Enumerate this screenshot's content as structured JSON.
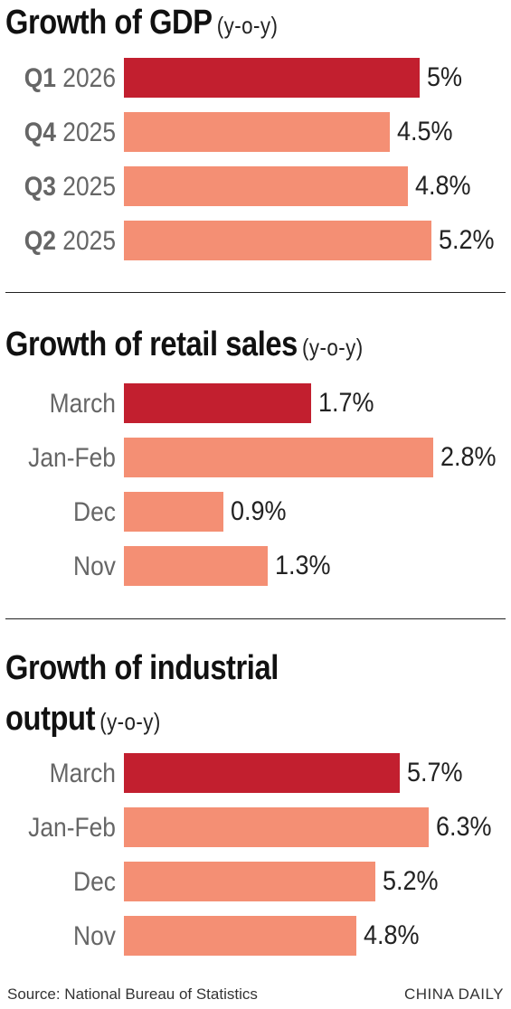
{
  "colors": {
    "highlight": "#c21f2f",
    "bar": "#f48f74"
  },
  "chart_data": [
    {
      "type": "bar",
      "orientation": "horizontal",
      "title": "Growth of GDP",
      "subtitle": "(y-o-y)",
      "categories": [
        {
          "bold": "Q1",
          "rest": " 2026"
        },
        {
          "bold": "Q4",
          "rest": " 2025"
        },
        {
          "bold": "Q3",
          "rest": " 2025"
        },
        {
          "bold": "Q2",
          "rest": " 2025"
        }
      ],
      "values": [
        5,
        4.5,
        4.8,
        5.2
      ],
      "labels": [
        "5%",
        "4.5%",
        "4.8%",
        "5.2%"
      ],
      "highlight_index": 0
    },
    {
      "type": "bar",
      "orientation": "horizontal",
      "title": "Growth of retail sales",
      "subtitle": "(y-o-y)",
      "categories": [
        {
          "bold": "",
          "rest": "March"
        },
        {
          "bold": "",
          "rest": "Jan-Feb"
        },
        {
          "bold": "",
          "rest": "Dec"
        },
        {
          "bold": "",
          "rest": "Nov"
        }
      ],
      "values": [
        1.7,
        2.8,
        0.9,
        1.3
      ],
      "labels": [
        "1.7%",
        "2.8%",
        "0.9%",
        "1.3%"
      ],
      "highlight_index": 0
    },
    {
      "type": "bar",
      "orientation": "horizontal",
      "title": "Growth of industrial output",
      "title_lines": [
        "Growth of industrial",
        "output"
      ],
      "subtitle": "(y-o-y)",
      "categories": [
        {
          "bold": "",
          "rest": "March"
        },
        {
          "bold": "",
          "rest": "Jan-Feb"
        },
        {
          "bold": "",
          "rest": "Dec"
        },
        {
          "bold": "",
          "rest": "Nov"
        }
      ],
      "values": [
        5.7,
        6.3,
        5.2,
        4.8
      ],
      "labels": [
        "5.7%",
        "6.3%",
        "5.2%",
        "4.8%"
      ],
      "highlight_index": 0
    }
  ],
  "footer": {
    "source": "Source: National Bureau of Statistics",
    "credit": "CHINA DAILY"
  }
}
